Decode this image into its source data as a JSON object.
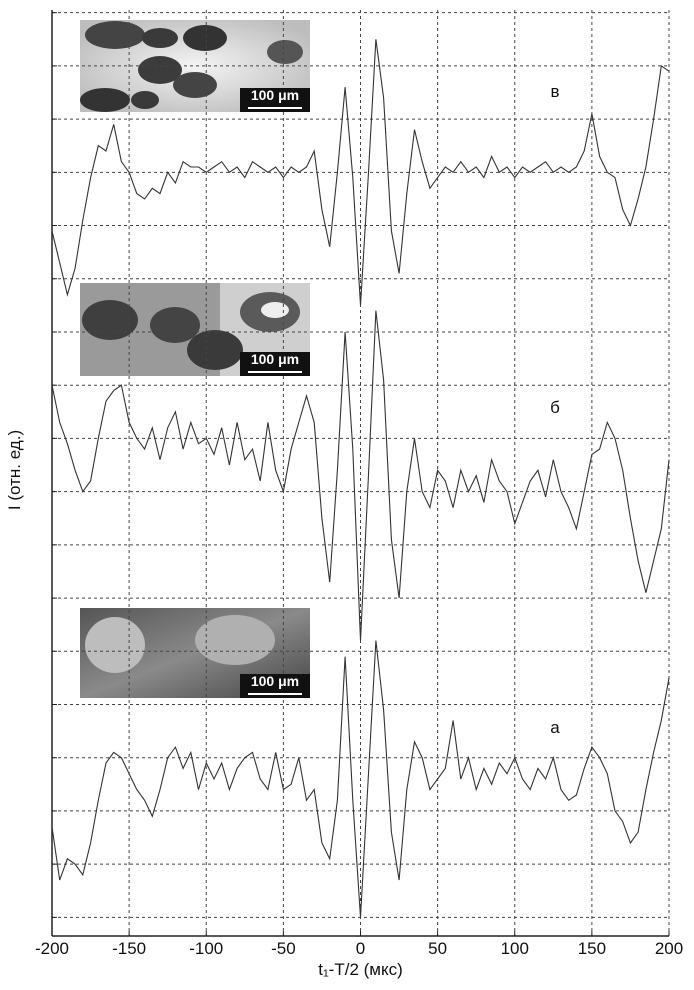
{
  "chart_data": {
    "type": "line",
    "xlabel": "t₁-T/2 (мкс)",
    "ylabel": "I (отн. ед.)",
    "x": [
      -200,
      -195,
      -190,
      -185,
      -180,
      -175,
      -170,
      -165,
      -160,
      -155,
      -150,
      -145,
      -140,
      -135,
      -130,
      -125,
      -120,
      -115,
      -110,
      -105,
      -100,
      -95,
      -90,
      -85,
      -80,
      -75,
      -70,
      -65,
      -60,
      -55,
      -50,
      -45,
      -40,
      -35,
      -30,
      -25,
      -20,
      -15,
      -10,
      -5,
      0,
      5,
      10,
      15,
      20,
      25,
      30,
      35,
      40,
      45,
      50,
      55,
      60,
      65,
      70,
      75,
      80,
      85,
      90,
      95,
      100,
      105,
      110,
      115,
      120,
      125,
      130,
      135,
      140,
      145,
      150,
      155,
      160,
      165,
      170,
      175,
      180,
      185,
      190,
      195,
      200
    ],
    "series": [
      {
        "name": "в",
        "color": "#333333",
        "values": [
          12.9,
          12.3,
          11.7,
          12.2,
          13.1,
          13.9,
          14.5,
          14.4,
          14.9,
          14.2,
          14.0,
          13.6,
          13.5,
          13.7,
          13.6,
          14.0,
          13.8,
          14.2,
          14.1,
          14.1,
          14.0,
          14.1,
          14.2,
          14.0,
          14.1,
          13.9,
          14.2,
          14.1,
          14.0,
          14.1,
          13.9,
          14.1,
          14.0,
          14.1,
          14.4,
          13.3,
          12.6,
          14.0,
          15.6,
          13.9,
          11.5,
          13.9,
          16.5,
          15.4,
          12.9,
          12.1,
          13.6,
          14.8,
          14.2,
          13.7,
          13.9,
          14.1,
          14.0,
          14.2,
          14.0,
          14.1,
          13.9,
          14.3,
          14.0,
          14.1,
          13.9,
          14.1,
          14.0,
          14.1,
          14.2,
          14.0,
          14.1,
          14.0,
          14.1,
          14.4,
          15.1,
          14.3,
          14.0,
          13.9,
          13.3,
          13.0,
          13.5,
          14.1,
          15.0,
          16.0,
          15.9
        ]
      },
      {
        "name": "б",
        "color": "#333333",
        "values": [
          10.0,
          9.3,
          8.9,
          8.4,
          8.0,
          8.2,
          9.0,
          9.7,
          9.9,
          10.0,
          9.3,
          9.0,
          8.8,
          9.2,
          8.6,
          9.2,
          9.5,
          8.8,
          9.3,
          8.9,
          9.0,
          8.7,
          9.2,
          8.5,
          9.3,
          8.6,
          8.8,
          8.2,
          9.3,
          8.4,
          8.0,
          8.8,
          9.3,
          9.8,
          9.3,
          7.5,
          6.3,
          8.4,
          11.0,
          8.8,
          5.2,
          8.2,
          11.4,
          10.1,
          7.1,
          6.0,
          8.0,
          9.0,
          8.0,
          7.7,
          8.4,
          8.2,
          7.7,
          8.4,
          8.0,
          8.3,
          7.8,
          8.6,
          8.2,
          8.0,
          7.4,
          7.8,
          8.2,
          8.4,
          7.9,
          8.6,
          8.0,
          7.7,
          7.3,
          8.0,
          8.7,
          8.8,
          9.3,
          9.0,
          8.4,
          7.5,
          6.7,
          6.1,
          6.7,
          7.3,
          8.6
        ]
      },
      {
        "name": "а",
        "color": "#333333",
        "values": [
          1.7,
          0.7,
          1.1,
          1.0,
          0.8,
          1.4,
          2.2,
          2.9,
          3.1,
          3.0,
          2.7,
          2.4,
          2.2,
          1.9,
          2.4,
          3.0,
          3.2,
          2.8,
          3.1,
          2.4,
          2.9,
          2.6,
          2.9,
          2.4,
          2.8,
          3.0,
          3.1,
          2.6,
          2.4,
          3.1,
          2.4,
          2.5,
          3.0,
          2.2,
          2.4,
          1.4,
          1.1,
          2.2,
          4.9,
          2.2,
          0.0,
          2.6,
          5.2,
          3.9,
          1.6,
          0.7,
          2.4,
          3.3,
          3.0,
          2.4,
          2.6,
          2.8,
          3.7,
          2.6,
          3.0,
          2.4,
          2.8,
          2.5,
          2.9,
          2.7,
          3.0,
          2.6,
          2.4,
          2.8,
          2.6,
          3.0,
          2.4,
          2.2,
          2.3,
          2.8,
          3.2,
          3.0,
          2.7,
          2.0,
          1.8,
          1.4,
          1.6,
          2.4,
          3.1,
          3.7,
          4.5
        ]
      }
    ],
    "insets": [
      {
        "scale_label": "100 μm"
      },
      {
        "scale_label": "100 μm"
      },
      {
        "scale_label": "100 μm"
      }
    ],
    "xlim": [
      -200,
      200
    ],
    "xticks": [
      -200,
      -150,
      -100,
      -50,
      0,
      50,
      100,
      150,
      200
    ],
    "ylim": [
      -0.35,
      17.05
    ],
    "yticks": [
      0,
      1,
      2,
      3,
      4,
      5,
      6,
      7,
      8,
      9,
      10,
      11,
      12,
      13,
      14,
      15,
      16,
      17
    ],
    "grid": true
  }
}
